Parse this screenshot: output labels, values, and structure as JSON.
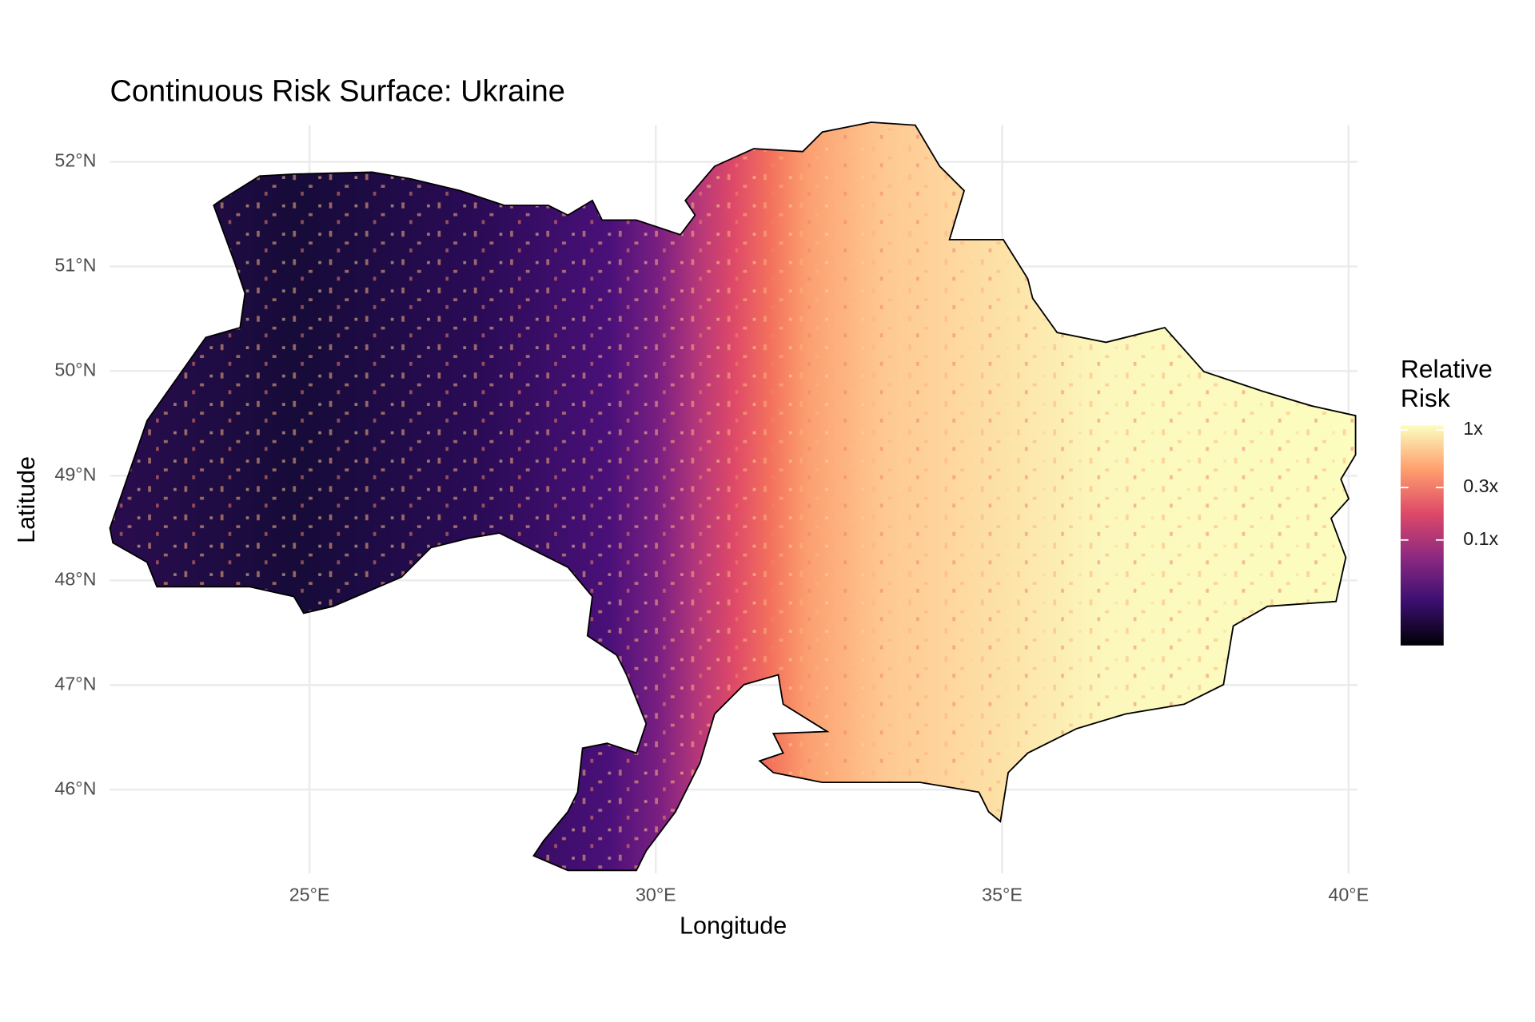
{
  "chart_data": {
    "type": "map",
    "title": "Continuous Risk Surface: Ukraine",
    "xlabel": "Longitude",
    "ylabel": "Latitude",
    "xlim": [
      22.12,
      40.13
    ],
    "ylim": [
      45.2,
      52.35
    ],
    "xticks": [
      {
        "value": 25,
        "label": "25°E"
      },
      {
        "value": 30,
        "label": "30°E"
      },
      {
        "value": 35,
        "label": "35°E"
      },
      {
        "value": 40,
        "label": "40°E"
      }
    ],
    "yticks": [
      {
        "value": 46,
        "label": "46°N"
      },
      {
        "value": 47,
        "label": "47°N"
      },
      {
        "value": 48,
        "label": "48°N"
      },
      {
        "value": 49,
        "label": "49°N"
      },
      {
        "value": 50,
        "label": "50°N"
      },
      {
        "value": 51,
        "label": "51°N"
      },
      {
        "value": 52,
        "label": "52°N"
      }
    ],
    "grid": true,
    "legend": {
      "title": "Relative Risk",
      "scale": "log",
      "limits": [
        0.011,
        1.1
      ],
      "ticks": [
        {
          "value": 1,
          "label": "1x"
        },
        {
          "value": 0.3,
          "label": "0.3x"
        },
        {
          "value": 0.1,
          "label": "0.1x"
        }
      ],
      "colors": [
        "#000004",
        "#3b0f70",
        "#8c2981",
        "#de4968",
        "#fe9f6d",
        "#fcfdbf"
      ]
    }
  }
}
